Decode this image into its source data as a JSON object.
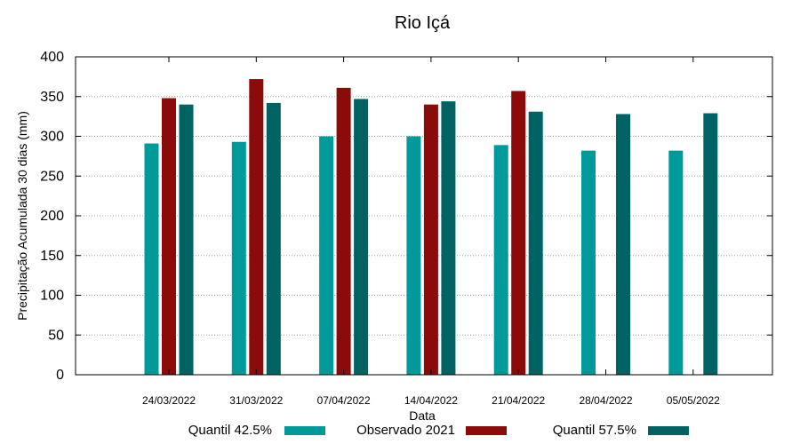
{
  "chart_data": {
    "type": "bar",
    "title": "Rio Içá",
    "xlabel": "Data",
    "ylabel": "Precipitação Acumulada 30 dias (mm)",
    "ylim": [
      0,
      400
    ],
    "yticks": [
      0,
      50,
      100,
      150,
      200,
      250,
      300,
      350,
      400
    ],
    "grid": true,
    "legend_position": "bottom",
    "categories": [
      "24/03/2022",
      "31/03/2022",
      "07/04/2022",
      "14/04/2022",
      "21/04/2022",
      "28/04/2022",
      "05/05/2022"
    ],
    "series": [
      {
        "name": "Quantil 42.5%",
        "color": "#009a9a",
        "values": [
          291,
          293,
          300,
          300,
          289,
          282,
          282
        ]
      },
      {
        "name": "Observado 2021",
        "color": "#8b0a0a",
        "values": [
          348,
          372,
          361,
          340,
          357,
          null,
          null
        ]
      },
      {
        "name": "Quantil 57.5%",
        "color": "#006262",
        "values": [
          340,
          342,
          347,
          344,
          331,
          328,
          329
        ]
      }
    ]
  }
}
